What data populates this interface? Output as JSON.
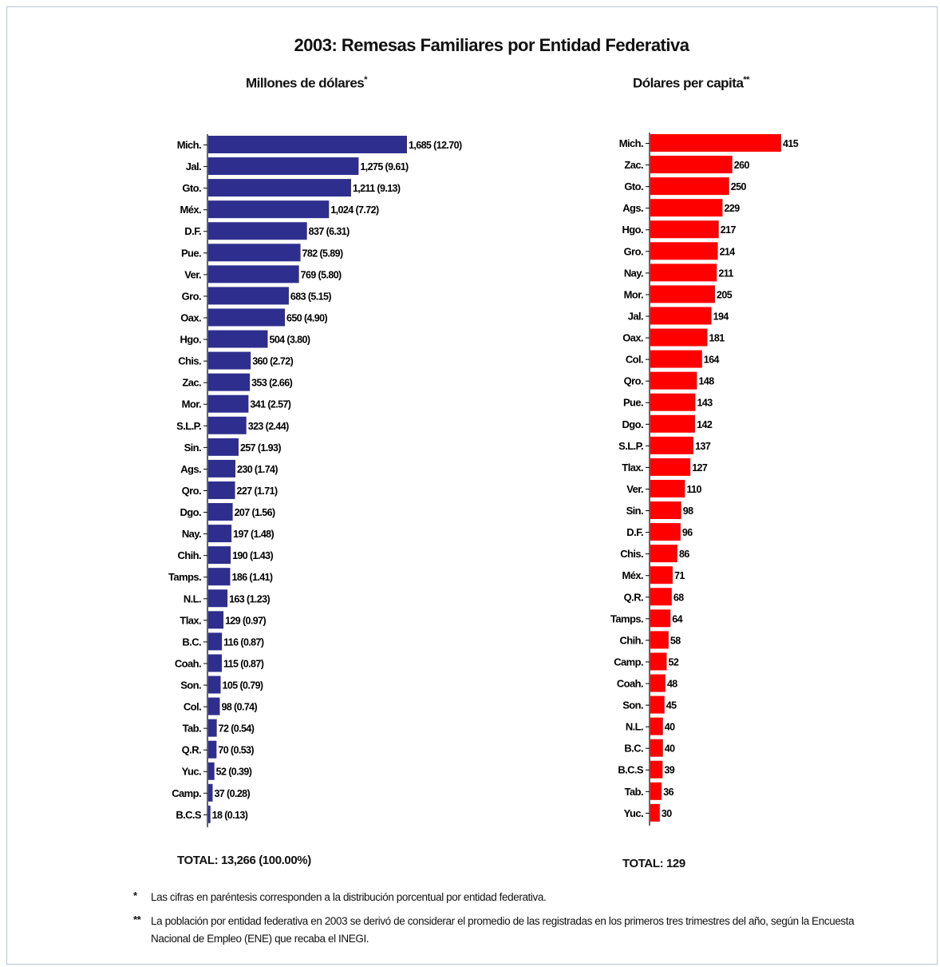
{
  "title": "2003: Remesas Familiares por Entidad Federativa",
  "left_subtitle": "Millones de dólares",
  "left_subtitle_mark": "*",
  "right_subtitle": "Dólares per capita",
  "right_subtitle_mark": "**",
  "total_left": "TOTAL: 13,266 (100.00%)",
  "total_right": "TOTAL: 129",
  "notes": [
    {
      "mark": "*",
      "text": "Las cifras en paréntesis corresponden a la distribución porcentual  por entidad federativa."
    },
    {
      "mark": "**",
      "text": "La población por entidad federativa en 2003 se derivó de considerar el promedio de las registradas en los primeros tres trimestres del año, según la Encuesta Nacional de Empleo (ENE) que recaba el INEGI."
    }
  ],
  "colors": {
    "left_bar": "#2e2e8f",
    "right_bar": "#ff0000",
    "frame": "#b9c6d6"
  },
  "chart_data": [
    {
      "type": "bar",
      "orientation": "horizontal",
      "title": "Millones de dólares",
      "categories": [
        "Mich.",
        "Jal.",
        "Gto.",
        "Méx.",
        "D.F.",
        "Pue.",
        "Ver.",
        "Gro.",
        "Oax.",
        "Hgo.",
        "Chis.",
        "Zac.",
        "Mor.",
        "S.L.P.",
        "Sin.",
        "Ags.",
        "Qro.",
        "Dgo.",
        "Nay.",
        "Chih.",
        "Tamps.",
        "N.L.",
        "Tlax.",
        "B.C.",
        "Coah.",
        "Son.",
        "Col.",
        "Tab.",
        "Q.R.",
        "Yuc.",
        "Camp.",
        "B.C.S"
      ],
      "values": [
        1685,
        1275,
        1211,
        1024,
        837,
        782,
        769,
        683,
        650,
        504,
        360,
        353,
        341,
        323,
        257,
        230,
        227,
        207,
        197,
        190,
        186,
        163,
        129,
        116,
        115,
        105,
        98,
        72,
        70,
        52,
        37,
        18
      ],
      "labels": [
        "1,685 (12.70)",
        "1,275 (9.61)",
        "1,211 (9.13)",
        "1,024 (7.72)",
        "837 (6.31)",
        "782 (5.89)",
        "769 (5.80)",
        "683 (5.15)",
        "650 (4.90)",
        "504 (3.80)",
        "360 (2.72)",
        "353 (2.66)",
        "341 (2.57)",
        "323 (2.44)",
        "257 (1.93)",
        "230 (1.74)",
        "227 (1.71)",
        "207 (1.56)",
        "197 (1.48)",
        "190 (1.43)",
        "186 (1.41)",
        "163 (1.23)",
        "129 (0.97)",
        "116 (0.87)",
        "115 (0.87)",
        "105 (0.79)",
        "98 (0.74)",
        "72 (0.54)",
        "70 (0.53)",
        "52 (0.39)",
        "37 (0.28)",
        "18 (0.13)"
      ]
    },
    {
      "type": "bar",
      "orientation": "horizontal",
      "title": "Dólares per capita",
      "categories": [
        "Mich.",
        "Zac.",
        "Gto.",
        "Ags.",
        "Hgo.",
        "Gro.",
        "Nay.",
        "Mor.",
        "Jal.",
        "Oax.",
        "Col.",
        "Qro.",
        "Pue.",
        "Dgo.",
        "S.L.P.",
        "Tlax.",
        "Ver.",
        "Sin.",
        "D.F.",
        "Chis.",
        "Méx.",
        "Q.R.",
        "Tamps.",
        "Chih.",
        "Camp.",
        "Coah.",
        "Son.",
        "N.L.",
        "B.C.",
        "B.C.S",
        "Tab.",
        "Yuc."
      ],
      "values": [
        415,
        260,
        250,
        229,
        217,
        214,
        211,
        205,
        194,
        181,
        164,
        148,
        143,
        142,
        137,
        127,
        110,
        98,
        96,
        86,
        71,
        68,
        64,
        58,
        52,
        48,
        45,
        40,
        40,
        39,
        36,
        30
      ],
      "labels": [
        "415",
        "260",
        "250",
        "229",
        "217",
        "214",
        "211",
        "205",
        "194",
        "181",
        "164",
        "148",
        "143",
        "142",
        "137",
        "127",
        "110",
        "98",
        "96",
        "86",
        "71",
        "68",
        "64",
        "58",
        "52",
        "48",
        "45",
        "40",
        "40",
        "39",
        "36",
        "30"
      ]
    }
  ]
}
